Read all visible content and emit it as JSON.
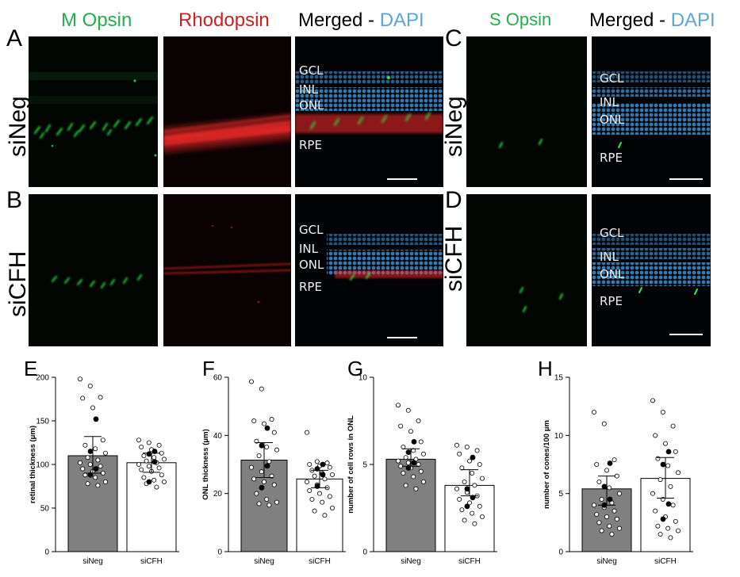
{
  "panels": {
    "A": "A",
    "B": "B",
    "C": "C",
    "D": "D",
    "E": "E",
    "F": "F",
    "G": "G",
    "H": "H"
  },
  "row_labels": {
    "top": "siNeg",
    "bottom": "siCFH"
  },
  "columns": {
    "m_opsin": "M Opsin",
    "rhodopsin": "Rhodopsin",
    "merged_prefix": "Merged - ",
    "dapi": "DAPI",
    "s_opsin": "S Opsin"
  },
  "layers": {
    "gcl": "GCL",
    "inl": "INL",
    "onl": "ONL",
    "rpe": "RPE"
  },
  "colors": {
    "green": "#22b04b",
    "red": "#cc1f1f",
    "blue": "#5aa6dc",
    "bar_dark": "#808080",
    "bar_light": "#ffffff"
  },
  "chart_data": [
    {
      "type": "bar",
      "title": "",
      "ylabel": "retinal thickness (μm)",
      "categories": [
        "siNeg",
        "siCFH"
      ],
      "values": [
        110,
        102
      ],
      "error": [
        [
          90,
          132
        ],
        [
          91,
          113
        ]
      ],
      "ylim": [
        0,
        200
      ],
      "yticks": [
        0,
        50,
        100,
        150,
        200
      ],
      "points_open": [
        [
          198,
          190,
          177,
          176,
          165,
          128,
          122,
          118,
          113,
          108,
          105,
          102,
          100,
          98,
          95,
          92,
          90,
          88,
          85,
          80,
          78,
          76
        ],
        [
          128,
          125,
          122,
          120,
          117,
          113,
          110,
          108,
          106,
          104,
          102,
          100,
          98,
          96,
          94,
          92,
          88,
          85,
          82,
          80,
          78,
          74
        ]
      ],
      "points_filled": [
        [
          152,
          115,
          95,
          88
        ],
        [
          115,
          112,
          103,
          80
        ]
      ]
    },
    {
      "type": "bar",
      "title": "",
      "ylabel": "ONL thickness (μm)",
      "categories": [
        "siNeg",
        "siCFH"
      ],
      "values": [
        31.5,
        25
      ],
      "error": [
        [
          25.5,
          37.5
        ],
        [
          22,
          28
        ]
      ],
      "ylim": [
        0,
        60
      ],
      "yticks": [
        0,
        20,
        40,
        60
      ],
      "points_open": [
        [
          58.5,
          56,
          45.5,
          45,
          44,
          41,
          38,
          36,
          35,
          33,
          31,
          29,
          27.5,
          26,
          25,
          24,
          23,
          20,
          18,
          17,
          16.5,
          16
        ],
        [
          41,
          31,
          30.5,
          30,
          29.5,
          29,
          28,
          27,
          26.5,
          26,
          25,
          24,
          23,
          22,
          21,
          20,
          19,
          18,
          17,
          15,
          14,
          12.5
        ]
      ],
      "points_filled": [
        [
          42.5,
          36.5,
          29.5,
          22
        ],
        [
          30,
          28.5,
          26.5,
          22.5
        ]
      ]
    },
    {
      "type": "bar",
      "title": "",
      "ylabel": "number of cell rows in ONL",
      "categories": [
        "siNeg",
        "siCFH"
      ],
      "values": [
        5.3,
        3.8
      ],
      "error": [
        [
          4.9,
          5.9
        ],
        [
          3.2,
          4.7
        ]
      ],
      "ylim": [
        0,
        10
      ],
      "yticks": [
        0,
        5,
        10
      ],
      "points_open": [
        [
          8.4,
          8.1,
          7.5,
          7.2,
          6.9,
          6.3,
          6.0,
          5.8,
          5.6,
          5.4,
          5.3,
          5.2,
          5.1,
          5.0,
          4.9,
          4.8,
          4.6,
          4.5,
          4.3,
          4.0,
          3.8,
          3.6
        ],
        [
          6.1,
          6.0,
          5.8,
          5.6,
          5.2,
          5.0,
          4.8,
          4.5,
          4.2,
          4.0,
          3.8,
          3.6,
          3.4,
          3.2,
          3.0,
          2.8,
          2.6,
          2.4,
          2.2,
          2.0,
          1.8,
          1.6
        ]
      ],
      "points_filled": [
        [
          6.3,
          5.7,
          5.1,
          4.8
        ],
        [
          5.4,
          3.6,
          3.1,
          2.6
        ]
      ]
    },
    {
      "type": "bar",
      "title": "",
      "ylabel": "number of cones/100 μm",
      "categories": [
        "siNeg",
        "siCFH"
      ],
      "values": [
        5.4,
        6.3
      ],
      "error": [
        [
          4.0,
          6.5
        ],
        [
          4.6,
          8.1
        ]
      ],
      "ylim": [
        0,
        15
      ],
      "yticks": [
        0,
        5,
        10,
        15
      ],
      "points_open": [
        [
          12.0,
          11.0,
          7.9,
          7.5,
          7.0,
          6.5,
          6.0,
          5.5,
          5.0,
          4.5,
          4.2,
          4.0,
          3.8,
          3.5,
          3.2,
          3.0,
          2.8,
          2.5,
          2.2,
          2.0,
          1.8,
          1.5
        ],
        [
          13.0,
          12.0,
          10.8,
          10.0,
          9.3,
          8.6,
          8.0,
          7.4,
          6.8,
          6.2,
          5.6,
          5.0,
          4.5,
          4.0,
          3.5,
          3.0,
          2.6,
          2.2,
          2.0,
          1.8,
          1.5,
          1.2
        ]
      ],
      "points_filled": [
        [
          7.6,
          5.6,
          4.5,
          4.0
        ],
        [
          8.6,
          7.5,
          4.1,
          2.8
        ]
      ]
    }
  ]
}
